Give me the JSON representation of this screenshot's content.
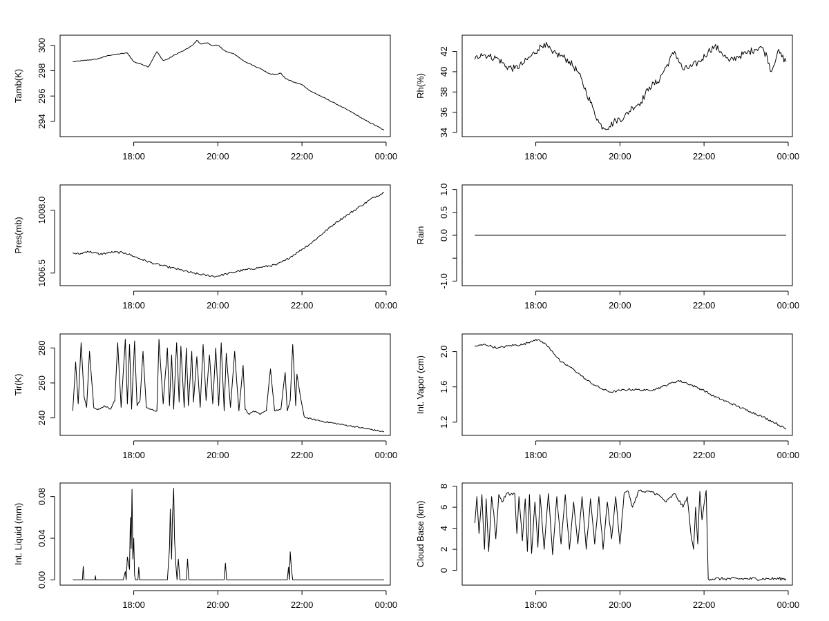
{
  "chart_data": [
    {
      "type": "line",
      "ylabel": "Tamb(K)",
      "x_tick_labels": [
        "18:00",
        "20:00",
        "22:00",
        "00:00"
      ],
      "x_ticks_hours": [
        18,
        20,
        22,
        24
      ],
      "x_range_hours": [
        16.25,
        24.1
      ],
      "ylim": [
        292.8,
        300.8
      ],
      "y_ticks": [
        294,
        296,
        298,
        300
      ],
      "y_tick_labels": [
        "294",
        "296",
        "298",
        "300"
      ],
      "noise": 0.03,
      "series": [
        {
          "x": [
            16.55,
            16.8,
            17.1,
            17.4,
            17.6,
            17.85,
            18.0,
            18.2,
            18.35,
            18.55,
            18.7,
            18.8,
            19.0,
            19.2,
            19.4,
            19.5,
            19.6,
            19.75,
            19.85,
            20.0,
            20.2,
            20.4,
            20.6,
            20.9,
            21.0,
            21.2,
            21.35,
            21.5,
            21.6,
            21.8,
            22.0,
            22.2,
            22.5,
            22.8,
            23.2,
            23.5,
            23.8,
            23.95
          ],
          "y": [
            298.7,
            298.8,
            298.9,
            299.2,
            299.3,
            299.4,
            298.7,
            298.5,
            298.3,
            299.5,
            298.8,
            298.9,
            299.3,
            299.6,
            300.0,
            300.4,
            300.1,
            300.2,
            300.0,
            300.0,
            299.5,
            299.3,
            298.8,
            298.3,
            298.2,
            297.8,
            297.7,
            297.8,
            297.4,
            297.1,
            296.9,
            296.4,
            295.9,
            295.4,
            294.7,
            294.1,
            293.6,
            293.3
          ]
        }
      ]
    },
    {
      "type": "line",
      "ylabel": "Rh(%)",
      "x_tick_labels": [
        "18:00",
        "20:00",
        "22:00",
        "00:00"
      ],
      "x_ticks_hours": [
        18,
        20,
        22,
        24
      ],
      "x_range_hours": [
        16.25,
        24.1
      ],
      "ylim": [
        33.6,
        43.6
      ],
      "y_ticks": [
        34,
        36,
        38,
        40,
        42
      ],
      "y_tick_labels": [
        "34",
        "36",
        "38",
        "40",
        "42"
      ],
      "noise": 0.35,
      "series": [
        {
          "x": [
            16.55,
            16.7,
            16.9,
            17.1,
            17.3,
            17.5,
            17.7,
            17.9,
            18.05,
            18.2,
            18.4,
            18.6,
            18.8,
            19.0,
            19.2,
            19.35,
            19.5,
            19.6,
            19.75,
            19.9,
            20.1,
            20.3,
            20.5,
            20.7,
            20.9,
            21.1,
            21.3,
            21.5,
            21.7,
            21.9,
            22.1,
            22.25,
            22.4,
            22.6,
            22.8,
            23.0,
            23.2,
            23.35,
            23.5,
            23.6,
            23.75,
            23.95
          ],
          "y": [
            41.2,
            41.8,
            41.5,
            41.3,
            40.5,
            40.3,
            40.8,
            41.6,
            42.2,
            42.8,
            41.8,
            41.6,
            41.0,
            40.0,
            38.0,
            36.5,
            35.0,
            34.5,
            34.6,
            35.2,
            35.5,
            36.5,
            37.0,
            38.5,
            39.0,
            40.5,
            42.0,
            40.2,
            40.5,
            41.0,
            42.0,
            42.5,
            42.0,
            41.0,
            41.5,
            41.8,
            42.2,
            42.5,
            41.5,
            40.0,
            42.0,
            41.0
          ]
        }
      ]
    },
    {
      "type": "line",
      "ylabel": "Pres(mb)",
      "x_tick_labels": [
        "18:00",
        "20:00",
        "22:00",
        "00:00"
      ],
      "x_ticks_hours": [
        18,
        20,
        22,
        24
      ],
      "x_range_hours": [
        16.25,
        24.1
      ],
      "ylim": [
        1006.2,
        1008.6
      ],
      "y_ticks": [
        1006.5,
        1008.0
      ],
      "y_tick_labels": [
        "1006.5",
        "1008.0"
      ],
      "noise": 0.025,
      "series": [
        {
          "x": [
            16.55,
            16.7,
            16.9,
            17.2,
            17.5,
            17.8,
            18.0,
            18.2,
            18.5,
            18.8,
            19.1,
            19.4,
            19.7,
            19.95,
            20.2,
            20.5,
            20.8,
            21.1,
            21.4,
            21.6,
            21.9,
            22.2,
            22.5,
            22.8,
            23.1,
            23.4,
            23.7,
            23.95
          ],
          "y": [
            1006.98,
            1006.95,
            1007.02,
            1006.95,
            1007.0,
            1006.98,
            1006.9,
            1006.82,
            1006.72,
            1006.65,
            1006.58,
            1006.5,
            1006.45,
            1006.42,
            1006.48,
            1006.55,
            1006.6,
            1006.65,
            1006.7,
            1006.8,
            1007.0,
            1007.2,
            1007.45,
            1007.7,
            1007.9,
            1008.1,
            1008.3,
            1008.42
          ]
        }
      ]
    },
    {
      "type": "line",
      "ylabel": "Rain",
      "x_tick_labels": [
        "18:00",
        "20:00",
        "22:00",
        "00:00"
      ],
      "x_ticks_hours": [
        18,
        20,
        22,
        24
      ],
      "x_range_hours": [
        16.25,
        24.1
      ],
      "ylim": [
        -1.1,
        1.1
      ],
      "y_ticks": [
        -1.0,
        -0.5,
        0.0,
        0.5,
        1.0
      ],
      "y_tick_labels": [
        "-1.0",
        "",
        "0.0",
        "0.5",
        "1.0"
      ],
      "noise": 0,
      "series": [
        {
          "x": [
            16.55,
            23.95
          ],
          "y": [
            0.0,
            0.0
          ]
        }
      ]
    },
    {
      "type": "line",
      "ylabel": "Tir(K)",
      "x_tick_labels": [
        "18:00",
        "20:00",
        "22:00",
        "00:00"
      ],
      "x_ticks_hours": [
        18,
        20,
        22,
        24
      ],
      "x_range_hours": [
        16.25,
        24.1
      ],
      "ylim": [
        230,
        288
      ],
      "y_ticks": [
        240,
        260,
        280
      ],
      "y_tick_labels": [
        "240",
        "260",
        "280"
      ],
      "noise": 0.4,
      "series": [
        {
          "x": [
            16.55,
            16.62,
            16.68,
            16.75,
            16.82,
            16.88,
            16.95,
            17.05,
            17.12,
            17.2,
            17.3,
            17.45,
            17.55,
            17.62,
            17.7,
            17.8,
            17.85,
            17.9,
            17.95,
            18.02,
            18.08,
            18.15,
            18.22,
            18.3,
            18.4,
            18.5,
            18.55,
            18.6,
            18.7,
            18.8,
            18.85,
            18.9,
            18.95,
            19.02,
            19.08,
            19.12,
            19.2,
            19.25,
            19.3,
            19.38,
            19.42,
            19.5,
            19.58,
            19.65,
            19.72,
            19.8,
            19.88,
            19.95,
            20.02,
            20.08,
            20.15,
            20.2,
            20.3,
            20.4,
            20.5,
            20.6,
            20.65,
            20.75,
            20.85,
            21.0,
            21.15,
            21.25,
            21.35,
            21.5,
            21.6,
            21.65,
            21.72,
            21.78,
            21.85,
            21.88,
            21.95,
            22.05,
            22.1,
            22.5,
            23.0,
            23.5,
            23.95
          ],
          "y": [
            244,
            272,
            248,
            283,
            252,
            246,
            278,
            246,
            245,
            245,
            247,
            245,
            250,
            283,
            246,
            285,
            248,
            282,
            245,
            284,
            247,
            250,
            278,
            246,
            245,
            244,
            244,
            285,
            248,
            280,
            247,
            276,
            245,
            283,
            249,
            281,
            246,
            280,
            247,
            278,
            249,
            275,
            246,
            282,
            250,
            276,
            248,
            280,
            247,
            283,
            244,
            277,
            246,
            278,
            244,
            270,
            245,
            242,
            244,
            242,
            244,
            268,
            244,
            245,
            266,
            244,
            250,
            282,
            247,
            265,
            254,
            241,
            240,
            238,
            236,
            234,
            232
          ]
        }
      ]
    },
    {
      "type": "line",
      "ylabel": "Int. Vapor (cm)",
      "x_tick_labels": [
        "18:00",
        "20:00",
        "22:00",
        "00:00"
      ],
      "x_ticks_hours": [
        18,
        20,
        22,
        24
      ],
      "x_range_hours": [
        16.25,
        24.1
      ],
      "ylim": [
        1.05,
        2.2
      ],
      "y_ticks": [
        1.2,
        1.6,
        2.0
      ],
      "y_tick_labels": [
        "1.2",
        "1.6",
        "2.0"
      ],
      "noise": 0.012,
      "series": [
        {
          "x": [
            16.55,
            16.8,
            17.1,
            17.4,
            17.7,
            17.9,
            18.0,
            18.2,
            18.4,
            18.6,
            18.8,
            19.0,
            19.2,
            19.4,
            19.6,
            19.8,
            20.0,
            20.2,
            20.4,
            20.6,
            20.8,
            21.0,
            21.2,
            21.4,
            21.6,
            21.8,
            22.0,
            22.2,
            22.5,
            22.8,
            23.1,
            23.4,
            23.7,
            23.95
          ],
          "y": [
            2.06,
            2.08,
            2.04,
            2.07,
            2.08,
            2.12,
            2.14,
            2.1,
            2.0,
            1.88,
            1.83,
            1.76,
            1.68,
            1.62,
            1.57,
            1.54,
            1.56,
            1.57,
            1.57,
            1.56,
            1.57,
            1.6,
            1.64,
            1.67,
            1.64,
            1.6,
            1.56,
            1.5,
            1.44,
            1.38,
            1.32,
            1.26,
            1.19,
            1.12
          ]
        }
      ]
    },
    {
      "type": "line",
      "ylabel": "Int. Liquid (mm)",
      "x_tick_labels": [
        "18:00",
        "20:00",
        "22:00",
        "00:00"
      ],
      "x_ticks_hours": [
        18,
        20,
        22,
        24
      ],
      "x_range_hours": [
        16.25,
        24.1
      ],
      "ylim": [
        -0.005,
        0.093
      ],
      "y_ticks": [
        0.0,
        0.04,
        0.08
      ],
      "y_tick_labels": [
        "0.00",
        "0.04",
        "0.08"
      ],
      "noise": 0,
      "series": [
        {
          "x": [
            16.55,
            16.78,
            16.8,
            16.82,
            17.08,
            17.09,
            17.1,
            17.75,
            17.8,
            17.82,
            17.85,
            17.9,
            17.92,
            17.94,
            17.96,
            17.98,
            18.0,
            18.02,
            18.04,
            18.06,
            18.1,
            18.12,
            18.14,
            18.16,
            18.8,
            18.85,
            18.87,
            18.9,
            18.92,
            18.95,
            18.97,
            19.0,
            19.03,
            19.06,
            19.1,
            19.25,
            19.28,
            19.31,
            20.15,
            20.18,
            20.21,
            21.65,
            21.68,
            21.7,
            21.72,
            21.75,
            21.78,
            23.95
          ],
          "y": [
            0,
            0,
            0.013,
            0,
            0,
            0.004,
            0,
            0,
            0.008,
            0,
            0.022,
            0.01,
            0.06,
            0.03,
            0.087,
            0.02,
            0.04,
            0.005,
            0,
            0,
            0,
            0.012,
            0,
            0,
            0,
            0.03,
            0.068,
            0.02,
            0.06,
            0.088,
            0.04,
            0.015,
            0,
            0.02,
            0,
            0,
            0.02,
            0,
            0,
            0.016,
            0,
            0,
            0.012,
            0,
            0.027,
            0.01,
            0,
            0
          ]
        }
      ]
    },
    {
      "type": "line",
      "ylabel": "Cloud Base (km)",
      "x_tick_labels": [
        "18:00",
        "20:00",
        "22:00",
        "00:00"
      ],
      "x_ticks_hours": [
        18,
        20,
        22,
        24
      ],
      "x_range_hours": [
        16.25,
        24.1
      ],
      "ylim": [
        -1.4,
        8.3
      ],
      "y_ticks": [
        0,
        2,
        4,
        6,
        8
      ],
      "y_tick_labels": [
        "0",
        "2",
        "4",
        "6",
        "8"
      ],
      "noise": 0.15,
      "series": [
        {
          "x": [
            16.55,
            16.6,
            16.65,
            16.72,
            16.78,
            16.82,
            16.88,
            16.95,
            17.0,
            17.05,
            17.12,
            17.2,
            17.3,
            17.4,
            17.5,
            17.55,
            17.6,
            17.68,
            17.75,
            17.8,
            17.85,
            17.9,
            17.98,
            18.05,
            18.1,
            18.2,
            18.3,
            18.4,
            18.5,
            18.6,
            18.7,
            18.8,
            18.9,
            19.0,
            19.1,
            19.2,
            19.3,
            19.4,
            19.5,
            19.6,
            19.7,
            19.8,
            19.9,
            20.0,
            20.1,
            20.2,
            20.3,
            20.45,
            20.6,
            20.75,
            20.9,
            21.1,
            21.3,
            21.5,
            21.6,
            21.7,
            21.75,
            21.8,
            21.85,
            21.9,
            21.95,
            22.05,
            22.1,
            22.5,
            23.0,
            23.5,
            23.95
          ],
          "y": [
            4.5,
            7.0,
            3.5,
            7.2,
            2.0,
            6.8,
            1.8,
            7.0,
            5.5,
            3.0,
            7.2,
            6.5,
            7.3,
            7.2,
            7.3,
            3.5,
            7.0,
            2.8,
            6.8,
            1.8,
            7.2,
            1.6,
            6.5,
            2.2,
            7.2,
            2.0,
            7.3,
            1.5,
            7.0,
            2.5,
            7.2,
            2.0,
            6.5,
            2.5,
            7.0,
            2.0,
            6.8,
            2.5,
            7.0,
            2.0,
            6.5,
            3.0,
            7.0,
            2.5,
            7.3,
            7.5,
            6.0,
            7.6,
            7.4,
            7.5,
            7.2,
            6.5,
            7.3,
            6.0,
            7.0,
            3.0,
            2.0,
            6.0,
            2.5,
            7.5,
            4.8,
            7.6,
            -0.8,
            -0.8,
            -0.8,
            -0.8,
            -0.8
          ]
        }
      ]
    }
  ]
}
